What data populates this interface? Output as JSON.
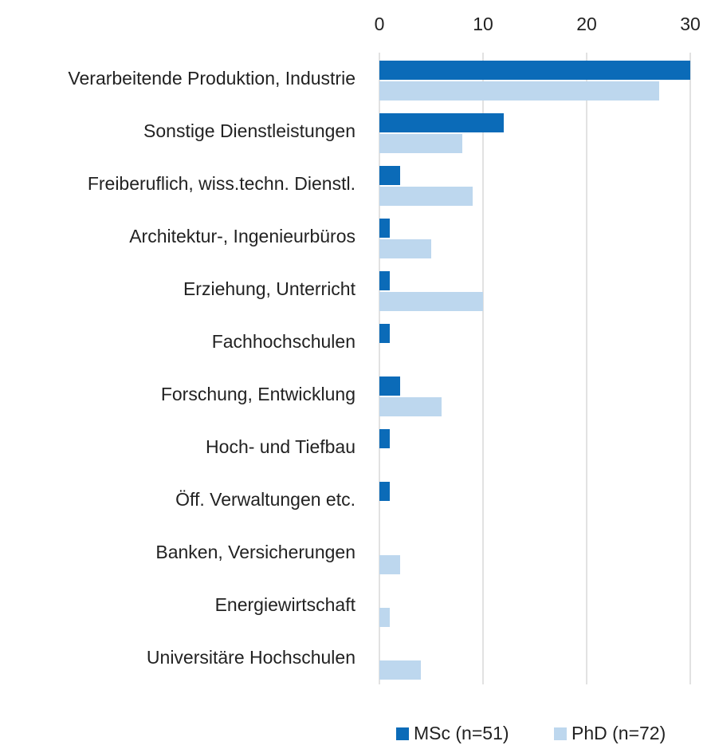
{
  "chart_data": {
    "type": "bar",
    "orientation": "horizontal",
    "categories": [
      "Verarbeitende Produktion, Industrie",
      "Sonstige Dienstleistungen",
      "Freiberuflich, wiss.techn. Dienstl.",
      "Architektur-, Ingenieurbüros",
      "Erziehung, Unterricht",
      "Fachhochschulen",
      "Forschung, Entwicklung",
      "Hoch- und Tiefbau",
      "Öff. Verwaltungen etc.",
      "Banken, Versicherungen",
      "Energiewirtschaft",
      "Universitäre Hochschulen"
    ],
    "series": [
      {
        "name": "MSc (n=51)",
        "color": "#0b6bb8",
        "values": [
          30,
          12,
          2,
          1,
          1,
          1,
          2,
          1,
          1,
          0,
          0,
          0
        ]
      },
      {
        "name": "PhD (n=72)",
        "color": "#bdd7ee",
        "values": [
          27,
          8,
          9,
          5,
          10,
          0,
          6,
          0,
          0,
          2,
          1,
          4
        ]
      }
    ],
    "xlim": [
      0,
      30
    ],
    "xticks": [
      0,
      10,
      20,
      30
    ],
    "grid": true,
    "legend": "bottom"
  }
}
